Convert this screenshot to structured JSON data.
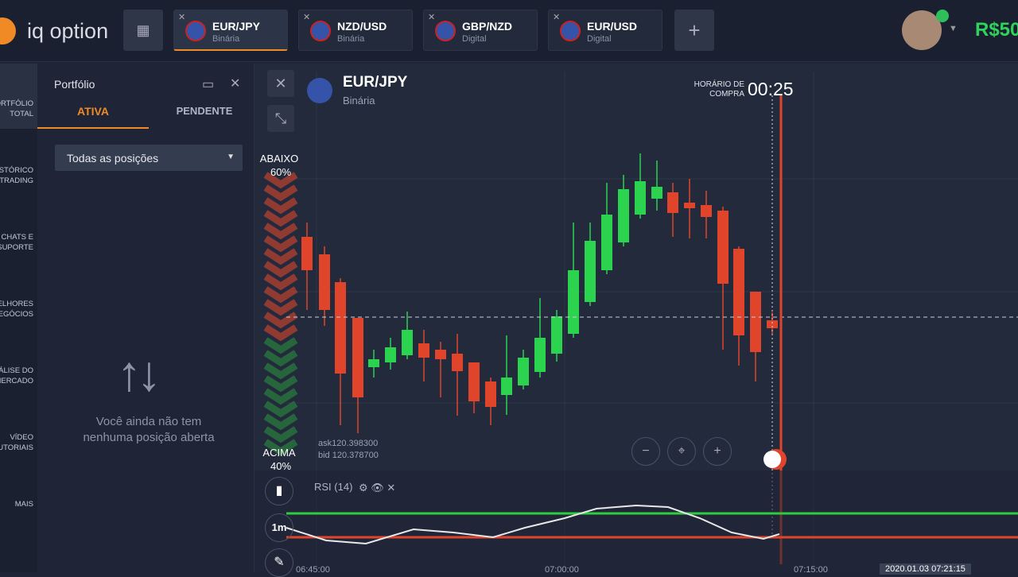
{
  "header": {
    "logo": "iq option",
    "tabs": [
      {
        "pair": "EUR/JPY",
        "kind": "Binária"
      },
      {
        "pair": "NZD/USD",
        "kind": "Binária"
      },
      {
        "pair": "GBP/NZD",
        "kind": "Digital"
      },
      {
        "pair": "EUR/USD",
        "kind": "Digital"
      }
    ],
    "balance": "R$50"
  },
  "sidebar": {
    "items": [
      "PORTFÓLIO TOTAL",
      "HISTÓRICO DE TRADING",
      "CHATS E SUPORTE",
      "MELHORES NEGÓCIOS",
      "ANÁLISE DO MERCADO",
      "VÍDEO TUTORIAIS",
      "MAIS"
    ]
  },
  "portfolio": {
    "title": "Portfólio",
    "tabs": [
      "ATIVA",
      "PENDENTE"
    ],
    "filter": "Todas as posições",
    "empty": "Você ainda não tem nenhuma posição aberta"
  },
  "chart": {
    "pair": "EUR/JPY",
    "kind": "Binária",
    "purchase_time_label": "HORÁRIO DE COMPRA",
    "purchase_time": "00:25",
    "below_label": "ABAIXO",
    "below_pct": "60%",
    "above_label": "ACIMA",
    "above_pct": "40%",
    "ask": "ask120.398300",
    "bid": "bid 120.378700",
    "indicator": "RSI (14)",
    "timeframe": "1m",
    "time_labels": [
      "06:45:00",
      "07:00:00",
      "07:15:00"
    ],
    "current_time": "2020.01.03 07:21:15"
  }
}
